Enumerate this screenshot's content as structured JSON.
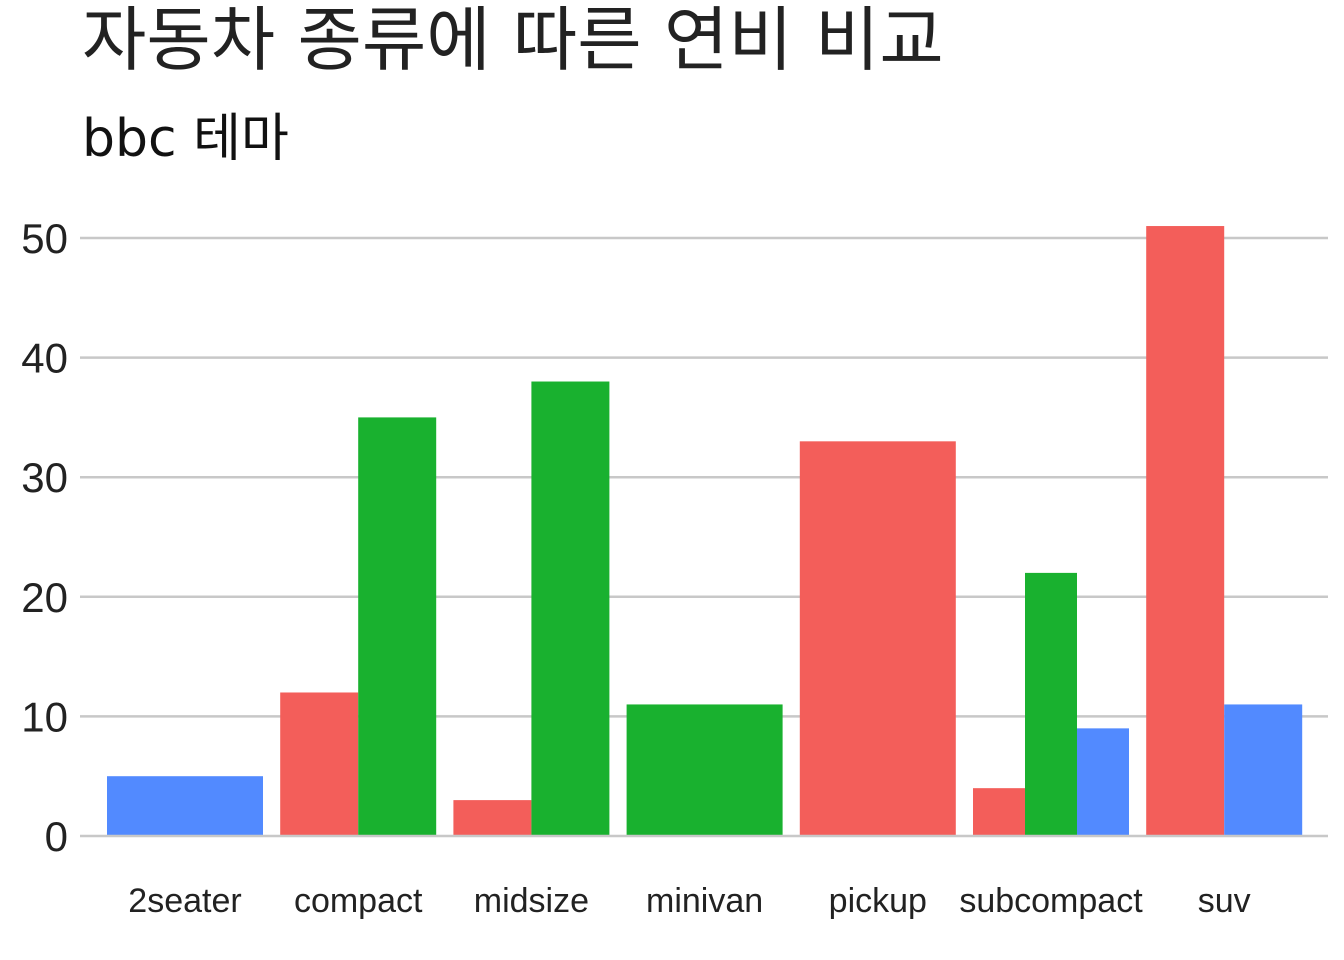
{
  "chart_data": {
    "type": "bar",
    "title": "자동차 종류에 따른 연비 비교",
    "subtitle": "bbc 테마",
    "xlabel": "",
    "ylabel": "",
    "categories": [
      "2seater",
      "compact",
      "midsize",
      "minivan",
      "pickup",
      "subcompact",
      "suv"
    ],
    "ylim": [
      0,
      52
    ],
    "yticks": [
      0,
      10,
      20,
      30,
      40,
      50
    ],
    "grid": true,
    "legend": "none",
    "series": [
      {
        "color": "#F35E5A",
        "values": [
          null,
          12,
          3,
          null,
          33,
          4,
          51
        ]
      },
      {
        "color": "#19B12F",
        "values": [
          null,
          35,
          38,
          11,
          null,
          22,
          null
        ]
      },
      {
        "color": "#528AFF",
        "values": [
          5,
          null,
          null,
          null,
          null,
          9,
          11
        ]
      }
    ]
  }
}
